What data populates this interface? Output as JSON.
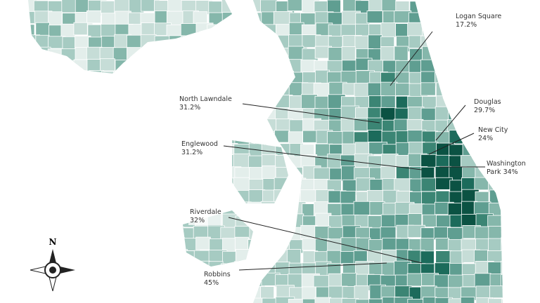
{
  "compass": "N",
  "annotations": [
    {
      "name": "Logan Square",
      "value": "17.2%"
    },
    {
      "name": "North Lawndale",
      "value": "31.2%"
    },
    {
      "name": "Douglas",
      "value": "29.7%"
    },
    {
      "name": "New City",
      "value": "24%"
    },
    {
      "name": "Englewood",
      "value": "31.2%"
    },
    {
      "name": "Washington Park",
      "value": "34%"
    },
    {
      "name": "Riverdale",
      "value": "32%"
    },
    {
      "name": "Robbins",
      "value": "45%"
    }
  ]
}
